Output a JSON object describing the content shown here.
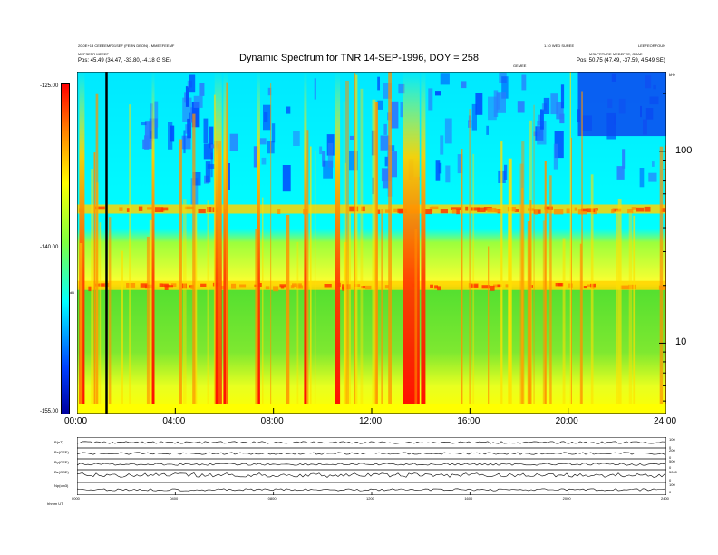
{
  "header": {
    "left_line1": "20.0E+13 CEEEEMF01SEF (FERN DEON) - MMEEFEEMF",
    "left_line2": "MEFSEFR MEEEF",
    "left_line3": "Pos: 45.49 (34.47, -33.80, -4.18 G SE)",
    "right_line1": "1.10 WED SUREE",
    "right_line2": "MSLPRTURE MEDEFEE, GRAE",
    "right_line3": "Pos: 50.75 (47.49, -37.59, 4.549 SE)",
    "right_corner": "LEEFEORFOUN",
    "mid_label": "GEMEE"
  },
  "chart_data": {
    "type": "heatmap",
    "title": "Dynamic Spectrum for TNR 14-SEP-1996, DOY = 258",
    "colorbar": {
      "ticks": [
        "-125.00",
        "-140.00",
        "-155.00"
      ],
      "values": [
        -125,
        -140,
        -155
      ],
      "range": [
        -155,
        -125
      ],
      "label": "dB",
      "colors": [
        "#0000a0",
        "#0040ff",
        "#00ffff",
        "#80ff40",
        "#ffff00",
        "#ff8000",
        "#ff0000"
      ]
    },
    "x": {
      "ticks": [
        "00:00",
        "04:00",
        "08:00",
        "12:00",
        "16:00",
        "20:00",
        "24:00"
      ],
      "values_hours": [
        0,
        4,
        8,
        12,
        16,
        20,
        24
      ],
      "range_hours": [
        0,
        24
      ]
    },
    "y": {
      "scale": "log",
      "unit": "kHz",
      "ticks": [
        "100",
        "10"
      ],
      "values": [
        100,
        10
      ],
      "range": [
        4.3,
        260
      ]
    },
    "marker_hour": 1.2,
    "bands": [
      {
        "name": "",
        "frequency": 50,
        "level": -138
      },
      {
        "name": "",
        "frequency": 20,
        "level": -141
      }
    ]
  },
  "panels": {
    "labels": [
      "B(nT)",
      "Bx(GSE)",
      "By(GSE)",
      "Bz(GSE)",
      "Np(cm3)"
    ],
    "right_ticks": [
      [
        "100",
        "0"
      ],
      [
        "200",
        "0"
      ],
      [
        "500",
        "0"
      ],
      [
        "5000",
        "0"
      ],
      [
        "100",
        "0"
      ]
    ],
    "x_ticks": [
      "0000",
      "0400",
      "0800",
      "1200",
      "1600",
      "2000",
      "2400"
    ],
    "footer": "hhmm  UT"
  }
}
